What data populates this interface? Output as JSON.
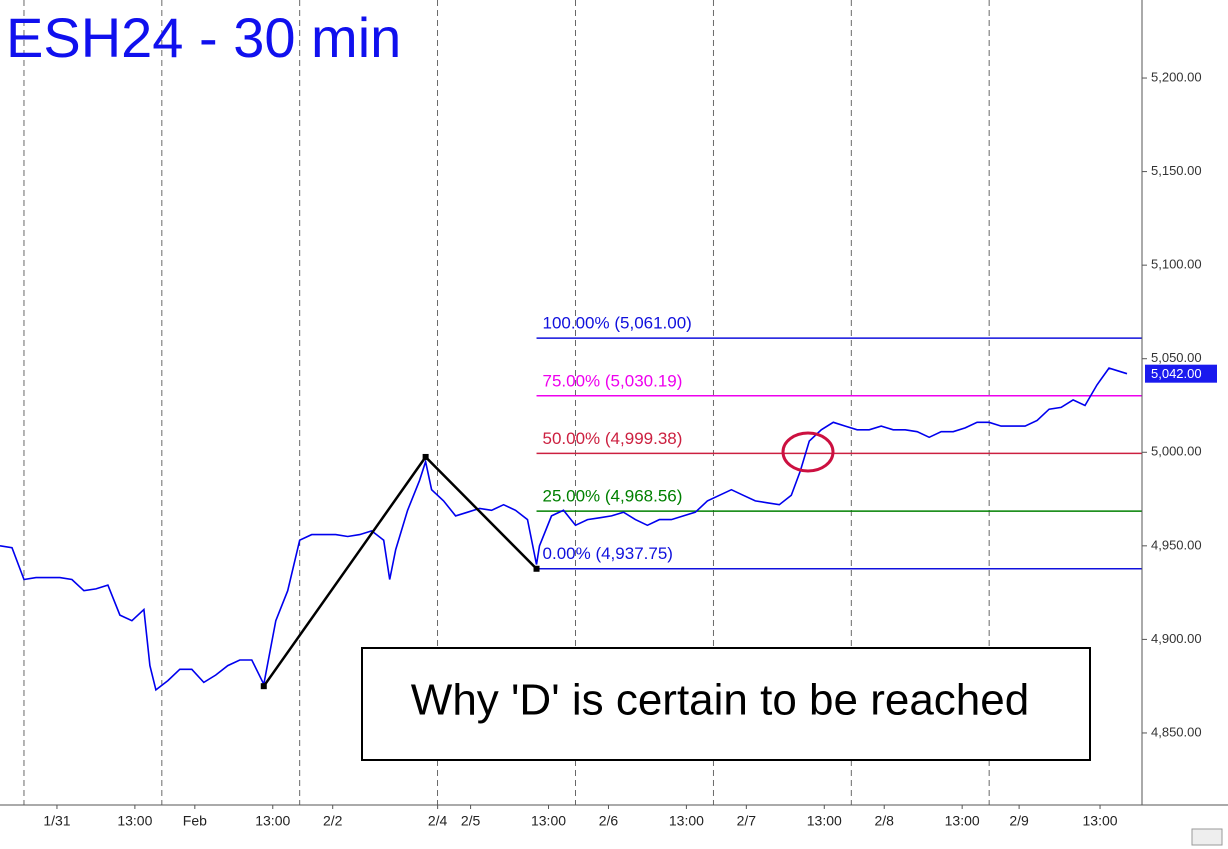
{
  "chart_data": {
    "type": "line",
    "title": "ESH24 - 30 min",
    "annotation": "Why 'D' is certain to be reached",
    "xlim": [
      0,
      381
    ],
    "ylim": [
      4811.5,
      5241.7
    ],
    "yticks": [
      {
        "value": 4850,
        "label": "4,850.00"
      },
      {
        "value": 4900,
        "label": "4,900.00"
      },
      {
        "value": 4950,
        "label": "4,950.00"
      },
      {
        "value": 5000,
        "label": "5,000.00"
      },
      {
        "value": 5050,
        "label": "5,050.00"
      },
      {
        "value": 5100,
        "label": "5,100.00"
      },
      {
        "value": 5150,
        "label": "5,150.00"
      },
      {
        "value": 5200,
        "label": "5,200.00"
      }
    ],
    "xticks": [
      {
        "value": 19,
        "label": "1/31"
      },
      {
        "value": 45,
        "label": "13:00"
      },
      {
        "value": 65,
        "label": "Feb"
      },
      {
        "value": 91,
        "label": "13:00"
      },
      {
        "value": 111,
        "label": "2/2"
      },
      {
        "value": 146,
        "label": "2/4"
      },
      {
        "value": 157,
        "label": "2/5"
      },
      {
        "value": 183,
        "label": "13:00"
      },
      {
        "value": 203,
        "label": "2/6"
      },
      {
        "value": 229,
        "label": "13:00"
      },
      {
        "value": 249,
        "label": "2/7"
      },
      {
        "value": 275,
        "label": "13:00"
      },
      {
        "value": 295,
        "label": "2/8"
      },
      {
        "value": 321,
        "label": "13:00"
      },
      {
        "value": 340,
        "label": "2/9"
      },
      {
        "value": 367,
        "label": "13:00"
      }
    ],
    "session_lines": [
      8,
      54,
      100,
      146,
      192,
      238,
      284,
      330
    ],
    "series": [
      {
        "color": "#0000ee",
        "x": [
          0,
          4,
          8,
          12,
          16,
          20,
          24,
          28,
          32,
          36,
          40,
          44,
          48,
          50,
          52,
          56,
          60,
          64,
          68,
          72,
          76,
          80,
          84,
          88,
          92,
          96,
          100,
          104,
          108,
          112,
          116,
          120,
          124,
          128,
          130,
          132,
          136,
          140,
          142,
          144,
          148,
          152,
          156,
          160,
          164,
          168,
          172,
          176,
          179,
          180,
          184,
          188,
          192,
          196,
          200,
          204,
          208,
          212,
          216,
          220,
          224,
          228,
          232,
          236,
          240,
          244,
          248,
          252,
          256,
          260,
          264,
          267,
          270,
          274,
          278,
          282,
          286,
          290,
          294,
          298,
          302,
          306,
          310,
          314,
          318,
          322,
          326,
          330,
          334,
          338,
          342,
          346,
          350,
          354,
          358,
          362,
          366,
          370,
          374,
          376
        ],
        "values": [
          4950,
          4949,
          4932,
          4933,
          4933,
          4933,
          4932,
          4926,
          4927,
          4929,
          4913,
          4910,
          4916,
          4886,
          4873,
          4878,
          4884,
          4884,
          4877,
          4881,
          4886,
          4889,
          4889,
          4876,
          4910,
          4926,
          4953,
          4956,
          4956,
          4956,
          4955,
          4956,
          4958,
          4953,
          4932,
          4948,
          4969,
          4985,
          4995,
          4980,
          4974,
          4966,
          4968,
          4970,
          4969,
          4972,
          4969,
          4964,
          4940,
          4950,
          4966,
          4969,
          4961,
          4964,
          4965,
          4966,
          4968,
          4964,
          4961,
          4964,
          4964,
          4966,
          4968,
          4974,
          4977,
          4980,
          4977,
          4974,
          4973,
          4972,
          4977,
          4990,
          5006,
          5012,
          5016,
          5014,
          5012,
          5012,
          5014,
          5012,
          5012,
          5011,
          5008,
          5011,
          5011,
          5013,
          5016,
          5016,
          5014,
          5014,
          5014,
          5017,
          5023,
          5024,
          5028,
          5025,
          5036,
          5045,
          5043,
          5042
        ]
      }
    ],
    "pattern": {
      "color": "#000000",
      "x": [
        88,
        142,
        179
      ],
      "values": [
        4875,
        4997.5,
        4937.75
      ]
    },
    "levels": [
      {
        "label": "100.00% (5,061.00)",
        "value": 5061.0,
        "color": "#1010dd"
      },
      {
        "label": "75.00% (5,030.19)",
        "value": 5030.19,
        "color": "#ee00ee"
      },
      {
        "label": "50.00% (4,999.38)",
        "value": 4999.38,
        "color": "#cc2040"
      },
      {
        "label": "25.00% (4,968.56)",
        "value": 4968.56,
        "color": "#008000"
      },
      {
        "label": "0.00% (4,937.75)",
        "value": 4937.75,
        "color": "#1010dd"
      }
    ],
    "levels_start": 179,
    "last_price": {
      "value": 5042,
      "label": "5,042.00"
    }
  }
}
